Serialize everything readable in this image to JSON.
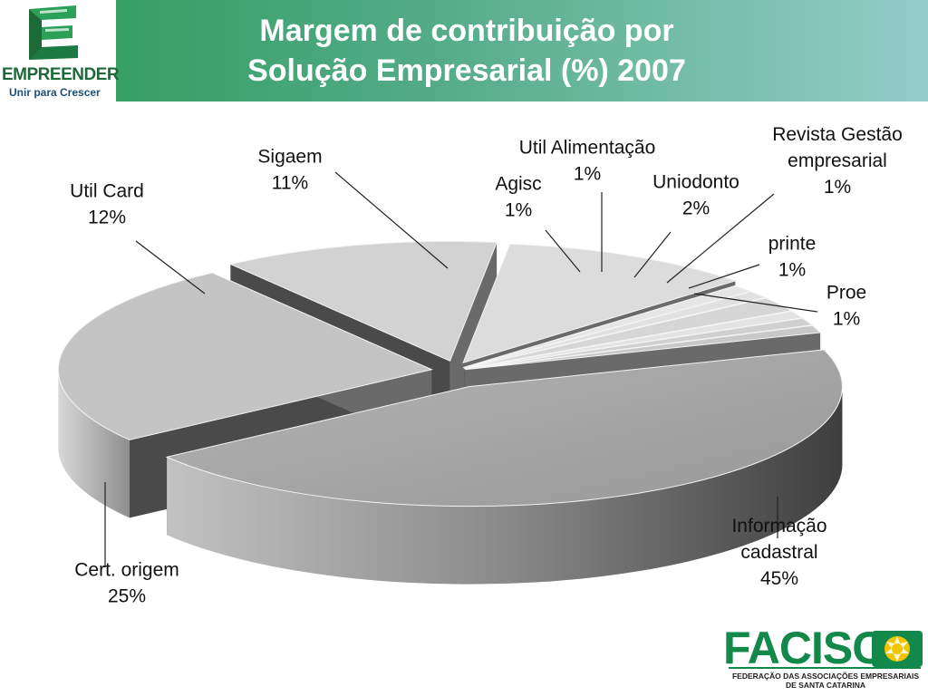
{
  "header": {
    "title_line1": "Margem de contribuição  por",
    "title_line2": "Solução Empresarial (%) 2007",
    "colors": {
      "gradient_start": "#2a9a57",
      "gradient_end": "#93cdc8",
      "title": "#ffffff"
    }
  },
  "logo": {
    "name": "EMPREENDER",
    "tagline": "Unir para Crescer",
    "icon": "empreender-e-icon",
    "colors": {
      "green": "#1c6a37",
      "blue": "#1c4f7a"
    }
  },
  "footer_logo": {
    "name": "FACISC",
    "subtitle_line1": "FEDERAÇÃO DAS ASSOCIAÇÕES EMPRESARIAIS",
    "subtitle_line2": "DE SANTA CATARINA",
    "icon": "facisc-emblem-icon",
    "colors": {
      "green": "#12884a",
      "yellow": "#f2c500"
    }
  },
  "chart_data": {
    "type": "pie",
    "title": "Margem de contribuição  por Solução Empresarial (%) 2007",
    "three_d": true,
    "exploded": true,
    "legend": "none",
    "unit": "%",
    "slices": [
      {
        "label": "Informação cadastral",
        "value": 45,
        "value_label": "45%",
        "label_lines": [
          "Informação",
          "cadastral",
          "45%"
        ]
      },
      {
        "label": "Cert. origem",
        "value": 25,
        "value_label": "25%",
        "label_lines": [
          "Cert. origem",
          "25%"
        ]
      },
      {
        "label": "Util Card",
        "value": 12,
        "value_label": "12%",
        "label_lines": [
          "Util Card",
          "12%"
        ]
      },
      {
        "label": "Sigaem",
        "value": 11,
        "value_label": "11%",
        "label_lines": [
          "Sigaem",
          "11%"
        ]
      },
      {
        "label": "Agisc",
        "value": 1,
        "value_label": "1%",
        "label_lines": [
          "Agisc",
          "1%"
        ]
      },
      {
        "label": "Util Alimentação",
        "value": 1,
        "value_label": "1%",
        "label_lines": [
          "Util Alimentação",
          "1%"
        ]
      },
      {
        "label": "Uniodonto",
        "value": 2,
        "value_label": "2%",
        "label_lines": [
          "Uniodonto",
          "2%"
        ]
      },
      {
        "label": "Revista Gestão empresarial",
        "value": 1,
        "value_label": "1%",
        "label_lines": [
          "Revista Gestão",
          "empresarial",
          "1%"
        ]
      },
      {
        "label": "printe",
        "value": 1,
        "value_label": "1%",
        "label_lines": [
          "printe",
          "1%"
        ]
      },
      {
        "label": "Proe",
        "value": 1,
        "value_label": "1%",
        "label_lines": [
          "Proe",
          "1%"
        ]
      }
    ],
    "colors": {
      "Informação cadastral": "#a6a6a6",
      "Cert. origem": "#c4c4c4",
      "Util Card": "#d2d2d2",
      "Sigaem": "#dcdcdc",
      "Agisc": "#e6e6e6",
      "Util Alimentação": "#e1e1e1",
      "Uniodonto": "#d6d6d6",
      "Revista Gestão empresarial": "#e3e3e3",
      "printe": "#d0d0d0",
      "Proe": "#c8c8c8"
    }
  }
}
